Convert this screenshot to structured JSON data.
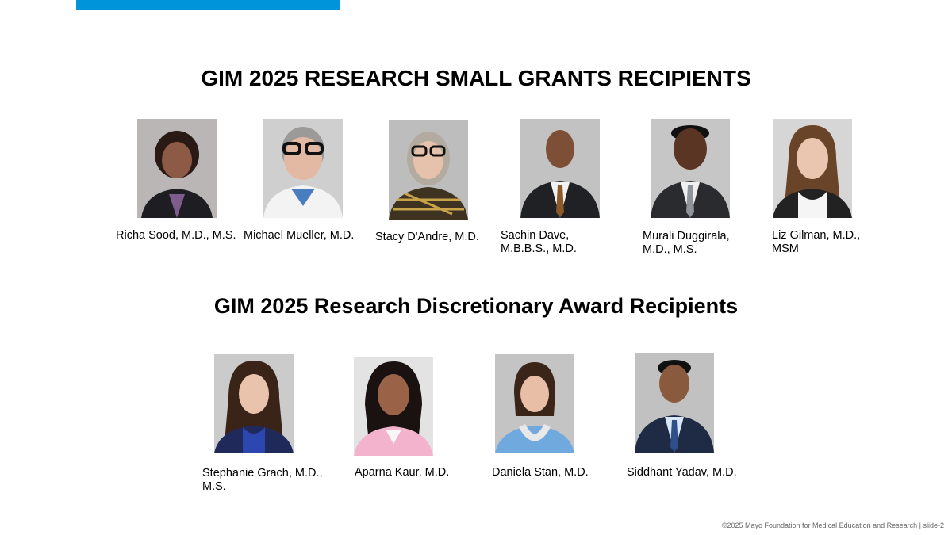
{
  "slide": {
    "title_small_grants": "GIM 2025 RESEARCH SMALL GRANTS RECIPIENTS",
    "title_discretionary": "GIM 2025 Research Discretionary Award Recipients",
    "footer": "©2025 Mayo Foundation for Medical Education and Research  |  slide-2"
  },
  "small_grants": [
    {
      "line1": "Richa Sood, M.D., M.S.",
      "line2": ""
    },
    {
      "line1": "Michael Mueller, M.D.",
      "line2": ""
    },
    {
      "line1": "Stacy D'Andre, M.D.",
      "line2": ""
    },
    {
      "line1": "Sachin Dave,",
      "line2": "M.B.B.S., M.D."
    },
    {
      "line1": "Murali Duggirala,",
      "line2": "M.D., M.S."
    },
    {
      "line1": "Liz Gilman, M.D.,",
      "line2": "MSM"
    }
  ],
  "discretionary": [
    {
      "line1": "Stephanie Grach, M.D.,",
      "line2": "M.S."
    },
    {
      "line1": "Aparna Kaur, M.D.",
      "line2": ""
    },
    {
      "line1": "Daniela Stan, M.D.",
      "line2": ""
    },
    {
      "line1": "Siddhant Yadav, M.D.",
      "line2": ""
    }
  ],
  "colors": {
    "accent_bar": "#0095db",
    "text": "#000000",
    "footer_text": "#666666"
  }
}
